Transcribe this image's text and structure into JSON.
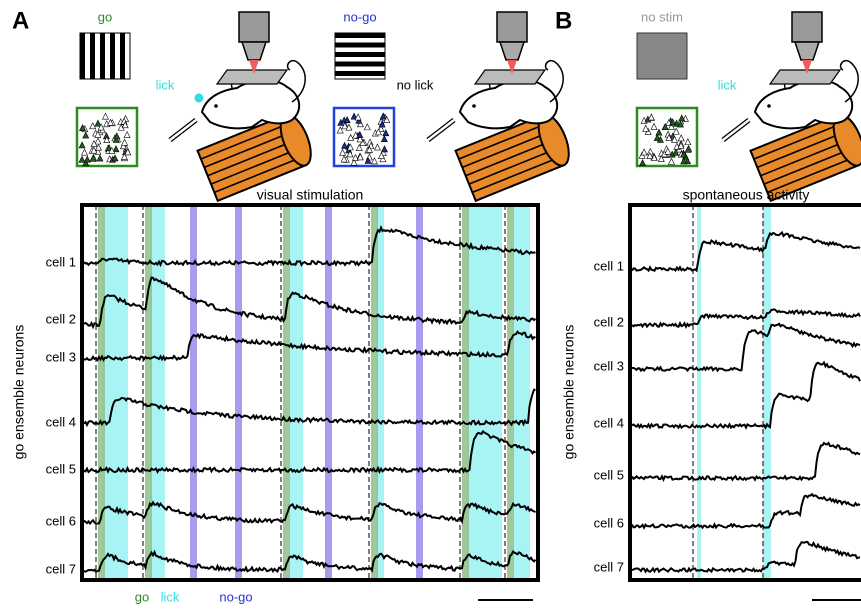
{
  "panels": [
    {
      "label": "A",
      "stimuli": {
        "go": "go",
        "no_go": "no-go",
        "lick": "lick",
        "no_lick": "no lick"
      },
      "title": "visual stimulation",
      "y_label": "go ensemble neurons",
      "cells": [
        "cell 1",
        "cell 2",
        "cell 3",
        "cell 4",
        "cell 5",
        "cell 6",
        "cell 7"
      ],
      "legend": {
        "go": "go",
        "lick": "lick",
        "no_go": "no-go"
      }
    },
    {
      "label": "B",
      "stimuli": {
        "no_stim": "no stim",
        "lick": "lick"
      },
      "title": "spontaneous activity",
      "y_label": "go ensemble neurons",
      "cells": [
        "cell 1",
        "cell 2",
        "cell 3",
        "cell 4",
        "cell 5",
        "cell 6",
        "cell 7"
      ]
    }
  ]
}
